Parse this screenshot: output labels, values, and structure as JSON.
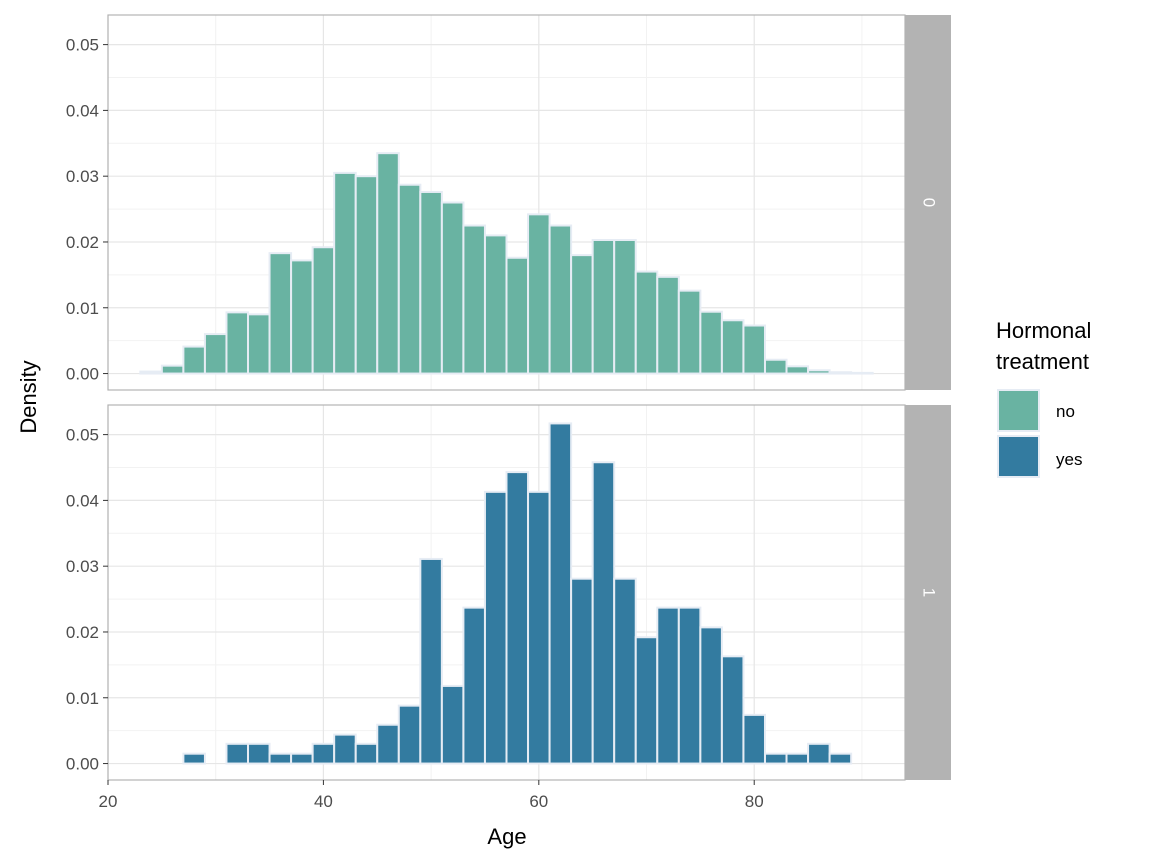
{
  "chart_data": {
    "type": "bar",
    "xlabel": "Age",
    "ylabel": "Density",
    "xlim": [
      20,
      94
    ],
    "ylim": [
      -0.0025,
      0.0545
    ],
    "x_ticks": [
      20,
      40,
      60,
      80
    ],
    "y_ticks": [
      0.0,
      0.01,
      0.02,
      0.03,
      0.04,
      0.05
    ],
    "y_tick_labels": [
      "0.00",
      "0.01",
      "0.02",
      "0.03",
      "0.04",
      "0.05"
    ],
    "bin_width": 2,
    "bin_starts": [
      23,
      25,
      27,
      29,
      31,
      33,
      35,
      37,
      39,
      41,
      43,
      45,
      47,
      49,
      51,
      53,
      55,
      57,
      59,
      61,
      63,
      65,
      67,
      69,
      71,
      73,
      75,
      77,
      79,
      81,
      83,
      85,
      87,
      89
    ],
    "grid": true,
    "legend": {
      "title": [
        "Hormonal",
        "treatment"
      ],
      "position": "right",
      "entries": [
        {
          "label": "no",
          "color": "#69b3a2"
        },
        {
          "label": "yes",
          "color": "#337ba0"
        }
      ]
    },
    "panels": [
      {
        "strip_label": "0",
        "fill_name": "no",
        "color": "#69b3a2",
        "values": [
          0.0003,
          0.0012,
          0.0041,
          0.006,
          0.0093,
          0.009,
          0.0183,
          0.0172,
          0.0192,
          0.0305,
          0.03,
          0.0335,
          0.0287,
          0.0276,
          0.026,
          0.0225,
          0.021,
          0.0176,
          0.0242,
          0.0225,
          0.018,
          0.0203,
          0.0203,
          0.0155,
          0.0147,
          0.0126,
          0.0094,
          0.0081,
          0.0073,
          0.0021,
          0.0011,
          0.0005,
          0.0002,
          0.0001
        ]
      },
      {
        "strip_label": "1",
        "fill_name": "yes",
        "color": "#337ba0",
        "values": [
          0.0,
          0.0,
          0.0015,
          0.0,
          0.003,
          0.003,
          0.0015,
          0.0015,
          0.003,
          0.0044,
          0.003,
          0.0059,
          0.0088,
          0.0311,
          0.0118,
          0.0237,
          0.0413,
          0.0443,
          0.0413,
          0.0517,
          0.0281,
          0.0458,
          0.0281,
          0.0192,
          0.0237,
          0.0237,
          0.0207,
          0.0163,
          0.0074,
          0.0015,
          0.0015,
          0.003,
          0.0015,
          0.0
        ]
      }
    ]
  }
}
